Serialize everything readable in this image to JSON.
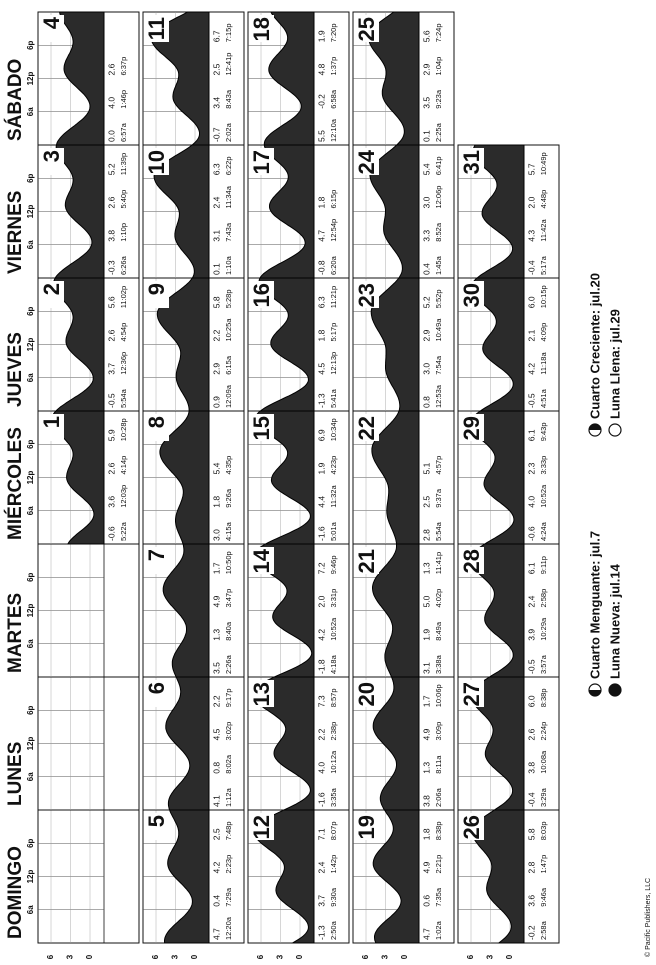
{
  "header": {
    "days": [
      "DOMINGO",
      "LUNES",
      "MARTES",
      "MIÉRCOLES",
      "JUEVES",
      "VIERNES",
      "SÁBADO"
    ],
    "hours": [
      "6a",
      "12p",
      "6p"
    ]
  },
  "axis_ticks": [
    6,
    3,
    0
  ],
  "weeks": [
    [
      null,
      null,
      null,
      {
        "date": 1,
        "tides": [
          [
            "-0.6",
            "5:22a"
          ],
          [
            "3.6",
            "12:03p"
          ],
          [
            "2.6",
            "4:14p"
          ],
          [
            "5.9",
            "10:28p"
          ]
        ]
      },
      {
        "date": 2,
        "tides": [
          [
            "-0.5",
            "5:54a"
          ],
          [
            "3.7",
            "12:36p"
          ],
          [
            "2.6",
            "4:54p"
          ],
          [
            "5.6",
            "11:02p"
          ]
        ]
      },
      {
        "date": 3,
        "tides": [
          [
            "-0.3",
            "6:26a"
          ],
          [
            "3.8",
            "1:10p"
          ],
          [
            "2.6",
            "5:40p"
          ],
          [
            "5.2",
            "11:39p"
          ]
        ]
      },
      {
        "date": 4,
        "tides": [
          [
            "0.0",
            "6:57a"
          ],
          [
            "4.0",
            "1:46p"
          ],
          [
            "2.6",
            "6:37p"
          ]
        ]
      }
    ],
    [
      {
        "date": 5,
        "tides": [
          [
            "4.7",
            "12:20a"
          ],
          [
            "0.4",
            "7:29a"
          ],
          [
            "4.2",
            "2:23p"
          ],
          [
            "2.5",
            "7:48p"
          ]
        ]
      },
      {
        "date": 6,
        "tides": [
          [
            "4.1",
            "1:12a"
          ],
          [
            "0.8",
            "8:02a"
          ],
          [
            "4.5",
            "3:02p"
          ],
          [
            "2.2",
            "9:17p"
          ]
        ]
      },
      {
        "date": 7,
        "tides": [
          [
            "3.5",
            "2:26a"
          ],
          [
            "1.3",
            "8:40a"
          ],
          [
            "4.9",
            "3:47p"
          ],
          [
            "1.7",
            "10:50p"
          ]
        ]
      },
      {
        "date": 8,
        "tides": [
          [
            "3.0",
            "4:15a"
          ],
          [
            "1.8",
            "9:26a"
          ],
          [
            "5.4",
            "4:35p"
          ]
        ]
      },
      {
        "date": 9,
        "tides": [
          [
            "0.9",
            "12:09a"
          ],
          [
            "2.9",
            "6:15a"
          ],
          [
            "2.2",
            "10:25a"
          ],
          [
            "5.8",
            "5:28p"
          ]
        ]
      },
      {
        "date": 10,
        "tides": [
          [
            "0.1",
            "1:10a"
          ],
          [
            "3.1",
            "7:43a"
          ],
          [
            "2.4",
            "11:34a"
          ],
          [
            "6.3",
            "6:22p"
          ]
        ]
      },
      {
        "date": 11,
        "tides": [
          [
            "-0.7",
            "2:02a"
          ],
          [
            "3.4",
            "8:43a"
          ],
          [
            "2.5",
            "12:41p"
          ],
          [
            "6.7",
            "7:15p"
          ]
        ]
      }
    ],
    [
      {
        "date": 12,
        "tides": [
          [
            "-1.3",
            "2:50a"
          ],
          [
            "3.7",
            "9:30a"
          ],
          [
            "2.4",
            "1:42p"
          ],
          [
            "7.1",
            "8:07p"
          ]
        ]
      },
      {
        "date": 13,
        "tides": [
          [
            "-1.6",
            "3:35a"
          ],
          [
            "4.0",
            "10:12a"
          ],
          [
            "2.2",
            "2:38p"
          ],
          [
            "7.3",
            "8:57p"
          ]
        ]
      },
      {
        "date": 14,
        "tides": [
          [
            "-1.8",
            "4:18a"
          ],
          [
            "4.2",
            "10:52a"
          ],
          [
            "2.0",
            "3:31p"
          ],
          [
            "7.2",
            "9:46p"
          ]
        ]
      },
      {
        "date": 15,
        "tides": [
          [
            "-1.6",
            "5:01a"
          ],
          [
            "4.4",
            "11:32a"
          ],
          [
            "1.9",
            "4:23p"
          ],
          [
            "6.9",
            "10:34p"
          ]
        ]
      },
      {
        "date": 16,
        "tides": [
          [
            "-1.3",
            "5:41a"
          ],
          [
            "4.5",
            "12:13p"
          ],
          [
            "1.8",
            "5:17p"
          ],
          [
            "6.3",
            "11:21p"
          ]
        ]
      },
      {
        "date": 17,
        "tides": [
          [
            "-0.8",
            "6:20a"
          ],
          [
            "4.7",
            "12:54p"
          ],
          [
            "1.8",
            "6:15p"
          ]
        ]
      },
      {
        "date": 18,
        "tides": [
          [
            "5.5",
            "12:10a"
          ],
          [
            "-0.2",
            "6:58a"
          ],
          [
            "4.8",
            "1:37p"
          ],
          [
            "1.9",
            "7:20p"
          ]
        ]
      }
    ],
    [
      {
        "date": 19,
        "tides": [
          [
            "4.7",
            "1:02a"
          ],
          [
            "0.6",
            "7:35a"
          ],
          [
            "4.9",
            "2:21p"
          ],
          [
            "1.8",
            "8:38p"
          ]
        ]
      },
      {
        "date": 20,
        "tides": [
          [
            "3.8",
            "2:06a"
          ],
          [
            "1.3",
            "8:11a"
          ],
          [
            "4.9",
            "3:09p"
          ],
          [
            "1.7",
            "10:06p"
          ]
        ]
      },
      {
        "date": 21,
        "tides": [
          [
            "3.1",
            "3:38a"
          ],
          [
            "1.9",
            "8:49a"
          ],
          [
            "5.0",
            "4:02p"
          ],
          [
            "1.3",
            "11:41p"
          ]
        ]
      },
      {
        "date": 22,
        "tides": [
          [
            "2.8",
            "5:54a"
          ],
          [
            "2.5",
            "9:37a"
          ],
          [
            "5.1",
            "4:57p"
          ]
        ]
      },
      {
        "date": 23,
        "tides": [
          [
            "0.8",
            "12:53a"
          ],
          [
            "3.0",
            "7:54a"
          ],
          [
            "2.9",
            "10:49a"
          ],
          [
            "5.2",
            "5:52p"
          ]
        ]
      },
      {
        "date": 24,
        "tides": [
          [
            "0.4",
            "1:45a"
          ],
          [
            "3.3",
            "8:52a"
          ],
          [
            "3.0",
            "12:06p"
          ],
          [
            "5.4",
            "6:41p"
          ]
        ]
      },
      {
        "date": 25,
        "tides": [
          [
            "0.1",
            "2:25a"
          ],
          [
            "3.5",
            "9:23a"
          ],
          [
            "2.9",
            "1:04p"
          ],
          [
            "5.6",
            "7:24p"
          ]
        ]
      }
    ],
    [
      {
        "date": 26,
        "tides": [
          [
            "-0.2",
            "2:58a"
          ],
          [
            "3.6",
            "9:46a"
          ],
          [
            "2.8",
            "1:47p"
          ],
          [
            "5.8",
            "8:03p"
          ]
        ]
      },
      {
        "date": 27,
        "tides": [
          [
            "-0.4",
            "3:29a"
          ],
          [
            "3.8",
            "10:08a"
          ],
          [
            "2.6",
            "2:24p"
          ],
          [
            "6.0",
            "8:38p"
          ]
        ]
      },
      {
        "date": 28,
        "tides": [
          [
            "-0.5",
            "3:57a"
          ],
          [
            "3.9",
            "10:29a"
          ],
          [
            "2.4",
            "2:58p"
          ],
          [
            "6.1",
            "9:11p"
          ]
        ]
      },
      {
        "date": 29,
        "tides": [
          [
            "-0.6",
            "4:24a"
          ],
          [
            "4.0",
            "10:52a"
          ],
          [
            "2.3",
            "3:33p"
          ],
          [
            "6.1",
            "9:43p"
          ]
        ]
      },
      {
        "date": 30,
        "tides": [
          [
            "-0.5",
            "4:51a"
          ],
          [
            "4.2",
            "11:18a"
          ],
          [
            "2.1",
            "4:09p"
          ],
          [
            "6.0",
            "10:15p"
          ]
        ]
      },
      {
        "date": 31,
        "tides": [
          [
            "-0.4",
            "5:17a"
          ],
          [
            "4.3",
            "11:42a"
          ],
          [
            "2.0",
            "4:48p"
          ],
          [
            "5.7",
            "10:49p"
          ]
        ]
      }
    ]
  ],
  "legend": [
    "Cuarto Menguante: jul.7",
    "Luna Nueva: jul.14",
    "Cuarto Creciente: jul.20",
    "Luna Llena: jul.29"
  ],
  "copyright": "© Pacific Publishers, LLC"
}
